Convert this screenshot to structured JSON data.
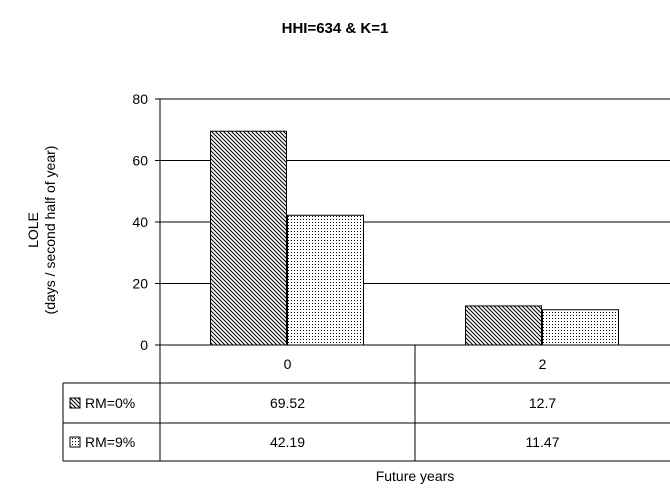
{
  "chart_data": {
    "type": "bar",
    "title": "HHI=634 & K=1",
    "ylabel": [
      "LOLE",
      "(days / second half of year)"
    ],
    "xlabel": "Future years",
    "categories": [
      "0",
      "2"
    ],
    "series": [
      {
        "name": "RM=0%",
        "values": [
          69.52,
          12.7
        ],
        "labels": [
          "69.52",
          "12.7"
        ],
        "pattern": "diagonal-hatch"
      },
      {
        "name": "RM=9%",
        "values": [
          42.19,
          11.47
        ],
        "labels": [
          "42.19",
          "11.47"
        ],
        "pattern": "dots"
      }
    ],
    "ylim": [
      0,
      80
    ],
    "yticks": [
      0,
      20,
      40,
      60,
      80
    ],
    "grid": true,
    "data_table": true
  }
}
